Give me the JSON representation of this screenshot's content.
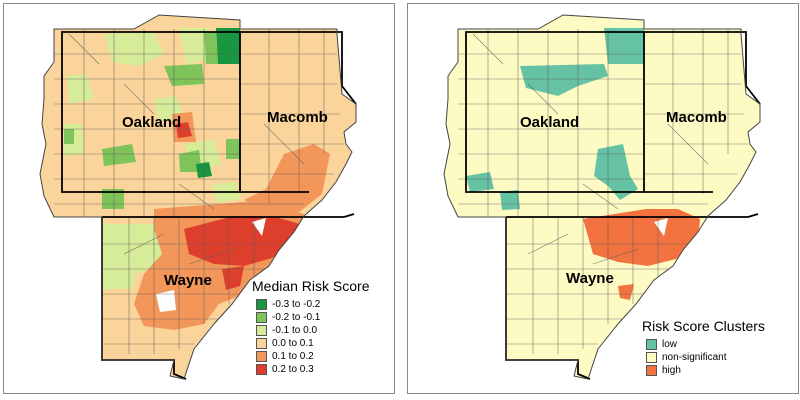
{
  "left_map": {
    "counties": {
      "oakland": "Oakland",
      "macomb": "Macomb",
      "wayne": "Wayne"
    },
    "legend": {
      "title": "Median Risk Score",
      "items": [
        {
          "label": "-0.3 to -0.2",
          "color": "#1a9641"
        },
        {
          "label": "-0.2 to -0.1",
          "color": "#7fc45a"
        },
        {
          "label": "-0.1 to 0.0",
          "color": "#d7ec98"
        },
        {
          "label": "0.0 to 0.1",
          "color": "#fad49a"
        },
        {
          "label": "0.1 to 0.2",
          "color": "#f3965a"
        },
        {
          "label": "0.2 to 0.3",
          "color": "#de3f2c"
        }
      ]
    }
  },
  "right_map": {
    "counties": {
      "oakland": "Oakland",
      "macomb": "Macomb",
      "wayne": "Wayne"
    },
    "legend": {
      "title": "Risk Score Clusters",
      "items": [
        {
          "label": "low",
          "color": "#66c2a5"
        },
        {
          "label": "non-significant",
          "color": "#fdfbc3"
        },
        {
          "label": "high",
          "color": "#f2733f"
        }
      ]
    }
  }
}
